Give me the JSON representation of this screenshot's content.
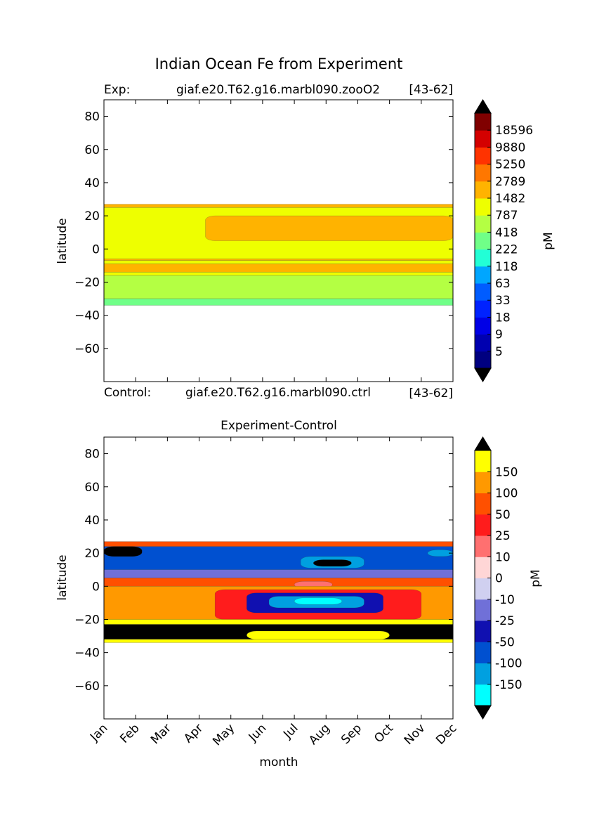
{
  "figure": {
    "title": "Indian Ocean Fe from Experiment"
  },
  "chart_data": [
    {
      "type": "heatmap",
      "label_left": "Exp:",
      "label_center": "giaf.e20.T62.g16.marbl090.zooO2",
      "label_right": "[43-62]",
      "ylabel": "latitude",
      "ylim": [
        -80,
        90
      ],
      "yticks": [
        "80",
        "60",
        "40",
        "20",
        "0",
        "−20",
        "−40",
        "−60"
      ],
      "ytick_values": [
        80,
        60,
        40,
        20,
        0,
        -20,
        -40,
        -60
      ],
      "colorbar": {
        "label": "pM",
        "extend": "both",
        "tick_labels": [
          "18596",
          "9880",
          "5250",
          "2789",
          "1482",
          "787",
          "418",
          "222",
          "118",
          "63",
          "33",
          "18",
          "9",
          "5"
        ],
        "colors": [
          "#000080",
          "#0000b0",
          "#0000e6",
          "#0022ff",
          "#005cff",
          "#00a6ff",
          "#22ffd6",
          "#70ff88",
          "#b4ff43",
          "#eeff00",
          "#ffb300",
          "#ff7700",
          "#ff3300",
          "#d40000",
          "#800000"
        ],
        "over_color": "#000000",
        "under_color": "#000000"
      },
      "regions": [
        {
          "lat_top": 27,
          "lat_bottom": 25,
          "color": "#ffb300"
        },
        {
          "lat_top": 25,
          "lat_bottom": -6,
          "color": "#eeff00"
        },
        {
          "lat_top": 20,
          "lat_bottom": 5,
          "month_start": 3.2,
          "month_end": 11,
          "color": "#ffb300"
        },
        {
          "lat_top": -6,
          "lat_bottom": -7,
          "color": "#ffb300"
        },
        {
          "lat_top": -7,
          "lat_bottom": -9,
          "color": "#eeff00"
        },
        {
          "lat_top": -9,
          "lat_bottom": -14,
          "color": "#ffb300"
        },
        {
          "lat_top": -14,
          "lat_bottom": -16,
          "color": "#eeff00"
        },
        {
          "lat_top": -16,
          "lat_bottom": -30,
          "color": "#b4ff43"
        },
        {
          "lat_top": -30,
          "lat_bottom": -34,
          "color": "#70ff88"
        }
      ]
    },
    {
      "type": "heatmap",
      "label_left": "Control:",
      "label_center": "giaf.e20.T62.g16.marbl090.ctrl",
      "label_right": "[43-62]",
      "title": "Experiment-Control",
      "xlabel": "month",
      "ylabel": "latitude",
      "ylim": [
        -80,
        90
      ],
      "yticks": [
        "80",
        "60",
        "40",
        "20",
        "0",
        "−20",
        "−40",
        "−60"
      ],
      "ytick_values": [
        80,
        60,
        40,
        20,
        0,
        -20,
        -40,
        -60
      ],
      "xticks": [
        "Jan",
        "Feb",
        "Mar",
        "Apr",
        "May",
        "Jun",
        "Jul",
        "Aug",
        "Sep",
        "Oct",
        "Nov",
        "Dec"
      ],
      "colorbar": {
        "label": "pM",
        "extend": "both",
        "tick_labels": [
          "150",
          "100",
          "50",
          "25",
          "10",
          "0",
          "-10",
          "-25",
          "-50",
          "-100",
          "-150"
        ],
        "colors": [
          "#00ffff",
          "#00a0e0",
          "#0050d0",
          "#1010b0",
          "#7070d8",
          "#d0d0f0",
          "#ffd6d6",
          "#ff7070",
          "#ff1c1c",
          "#ff5000",
          "#ff9900",
          "#ffff00"
        ],
        "over_color": "#000000",
        "under_color": "#000000"
      },
      "regions": [
        {
          "lat_top": 27,
          "lat_bottom": 24,
          "color": "#ff5000"
        },
        {
          "lat_top": 24,
          "lat_bottom": 10,
          "color": "#0050d0"
        },
        {
          "lat_top": 24,
          "lat_bottom": 18,
          "month_start": 0,
          "month_end": 1.2,
          "color": "#000000"
        },
        {
          "lat_top": 22,
          "lat_bottom": 18,
          "month_start": 10.2,
          "month_end": 11,
          "color": "#00a0e0"
        },
        {
          "lat_top": 18,
          "lat_bottom": 11,
          "month_start": 6.2,
          "month_end": 8.2,
          "color": "#00a0e0"
        },
        {
          "lat_top": 16,
          "lat_bottom": 12,
          "month_start": 6.6,
          "month_end": 7.8,
          "color": "#000000"
        },
        {
          "lat_top": 10,
          "lat_bottom": 5,
          "color": "#7070d8"
        },
        {
          "lat_top": 5,
          "lat_bottom": 0,
          "color": "#ff5000"
        },
        {
          "lat_top": 3,
          "lat_bottom": -1,
          "month_start": 6,
          "month_end": 7.2,
          "color": "#ff7070"
        },
        {
          "lat_top": 0,
          "lat_bottom": -20,
          "color": "#ff9900"
        },
        {
          "lat_top": -2,
          "lat_bottom": -20,
          "month_start": 3.5,
          "month_end": 10,
          "color": "#ff1c1c"
        },
        {
          "lat_top": -4,
          "lat_bottom": -16,
          "month_start": 4.5,
          "month_end": 8.8,
          "color": "#1010b0"
        },
        {
          "lat_top": -6,
          "lat_bottom": -13,
          "month_start": 5.2,
          "month_end": 8.2,
          "color": "#00a0e0"
        },
        {
          "lat_top": -7,
          "lat_bottom": -11,
          "month_start": 6,
          "month_end": 7.5,
          "color": "#00ffff"
        },
        {
          "lat_top": -20,
          "lat_bottom": -23,
          "color": "#ffff00"
        },
        {
          "lat_top": -23,
          "lat_bottom": -32,
          "color": "#000000"
        },
        {
          "lat_top": -27,
          "lat_bottom": -32,
          "month_start": 4.5,
          "month_end": 9,
          "color": "#ffff00"
        },
        {
          "lat_top": -32,
          "lat_bottom": -34,
          "color": "#ffff00"
        }
      ]
    }
  ]
}
